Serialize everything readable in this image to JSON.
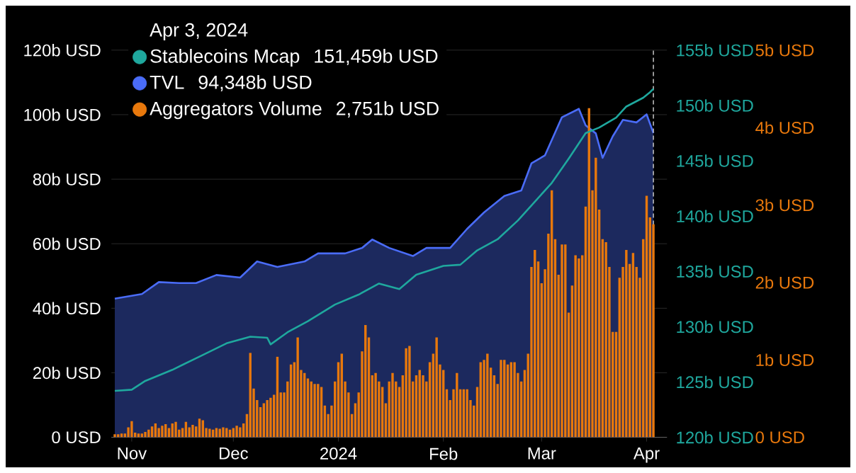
{
  "chart_data": {
    "type": "line",
    "x": [
      "2023-10-27",
      "2023-10-28",
      "2023-10-29",
      "2023-10-30",
      "2023-10-31",
      "2023-11-01",
      "2023-11-02",
      "2023-11-03",
      "2023-11-04",
      "2023-11-05",
      "2023-11-06",
      "2023-11-07",
      "2023-11-08",
      "2023-11-09",
      "2023-11-10",
      "2023-11-11",
      "2023-11-12",
      "2023-11-13",
      "2023-11-14",
      "2023-11-15",
      "2023-11-16",
      "2023-11-17",
      "2023-11-18",
      "2023-11-19",
      "2023-11-20",
      "2023-11-21",
      "2023-11-22",
      "2023-11-23",
      "2023-11-24",
      "2023-11-25",
      "2023-11-26",
      "2023-11-27",
      "2023-11-28",
      "2023-11-29",
      "2023-11-30",
      "2023-12-01",
      "2023-12-02",
      "2023-12-03",
      "2023-12-04",
      "2023-12-05",
      "2023-12-06",
      "2023-12-07",
      "2023-12-08",
      "2023-12-09",
      "2023-12-10",
      "2023-12-11",
      "2023-12-12",
      "2023-12-13",
      "2023-12-14",
      "2023-12-15",
      "2023-12-16",
      "2023-12-17",
      "2023-12-18",
      "2023-12-19",
      "2023-12-20",
      "2023-12-21",
      "2023-12-22",
      "2023-12-23",
      "2023-12-24",
      "2023-12-25",
      "2023-12-26",
      "2023-12-27",
      "2023-12-28",
      "2023-12-29",
      "2023-12-30",
      "2023-12-31",
      "2024-01-01",
      "2024-01-02",
      "2024-01-03",
      "2024-01-04",
      "2024-01-05",
      "2024-01-06",
      "2024-01-07",
      "2024-01-08",
      "2024-01-09",
      "2024-01-10",
      "2024-01-11",
      "2024-01-12",
      "2024-01-13",
      "2024-01-14",
      "2024-01-15",
      "2024-01-16",
      "2024-01-17",
      "2024-01-18",
      "2024-01-19",
      "2024-01-20",
      "2024-01-21",
      "2024-01-22",
      "2024-01-23",
      "2024-01-24",
      "2024-01-25",
      "2024-01-26",
      "2024-01-27",
      "2024-01-28",
      "2024-01-29",
      "2024-01-30",
      "2024-01-31",
      "2024-02-01",
      "2024-02-02",
      "2024-02-03",
      "2024-02-04",
      "2024-02-05",
      "2024-02-06",
      "2024-02-07",
      "2024-02-08",
      "2024-02-09",
      "2024-02-10",
      "2024-02-11",
      "2024-02-12",
      "2024-02-13",
      "2024-02-14",
      "2024-02-15",
      "2024-02-16",
      "2024-02-17",
      "2024-02-18",
      "2024-02-19",
      "2024-02-20",
      "2024-02-21",
      "2024-02-22",
      "2024-02-23",
      "2024-02-24",
      "2024-02-25",
      "2024-02-26",
      "2024-02-27",
      "2024-02-28",
      "2024-02-29",
      "2024-03-01",
      "2024-03-02",
      "2024-03-03",
      "2024-03-04",
      "2024-03-05",
      "2024-03-06",
      "2024-03-07",
      "2024-03-08",
      "2024-03-09",
      "2024-03-10",
      "2024-03-11",
      "2024-03-12",
      "2024-03-13",
      "2024-03-14",
      "2024-03-15",
      "2024-03-16",
      "2024-03-17",
      "2024-03-18",
      "2024-03-19",
      "2024-03-20",
      "2024-03-21",
      "2024-03-22",
      "2024-03-23",
      "2024-03-24",
      "2024-03-25",
      "2024-03-26",
      "2024-03-27",
      "2024-03-28",
      "2024-03-29",
      "2024-03-30",
      "2024-03-31",
      "2024-04-01",
      "2024-04-02",
      "2024-04-03"
    ],
    "xlim": [
      "2023-10-26",
      "2024-04-07"
    ],
    "xticks": [
      {
        "value": "2023-11-01",
        "label": "Nov"
      },
      {
        "value": "2023-12-01",
        "label": "Dec"
      },
      {
        "value": "2024-01-01",
        "label": "2024"
      },
      {
        "value": "2024-02-01",
        "label": "Feb"
      },
      {
        "value": "2024-03-01",
        "label": "Mar"
      },
      {
        "value": "2024-04-01",
        "label": "Apr"
      }
    ],
    "ylim": [
      0,
      120
    ],
    "yticks": [
      {
        "value": 0,
        "label": "0 USD"
      },
      {
        "value": 20,
        "label": "20b USD"
      },
      {
        "value": 40,
        "label": "40b USD"
      },
      {
        "value": 60,
        "label": "60b USD"
      },
      {
        "value": 80,
        "label": "80b USD"
      },
      {
        "value": 100,
        "label": "100b USD"
      },
      {
        "value": 120,
        "label": "120b USD"
      }
    ],
    "y2lim": [
      120,
      155
    ],
    "y2ticks": [
      {
        "value": 120,
        "label": "120b USD"
      },
      {
        "value": 125,
        "label": "125b USD"
      },
      {
        "value": 130,
        "label": "130b USD"
      },
      {
        "value": 135,
        "label": "135b USD"
      },
      {
        "value": 140,
        "label": "140b USD"
      },
      {
        "value": 145,
        "label": "145b USD"
      },
      {
        "value": 150,
        "label": "150b USD"
      },
      {
        "value": 155,
        "label": "155b USD"
      }
    ],
    "y3lim": [
      0,
      5
    ],
    "y3ticks": [
      {
        "value": 0,
        "label": "0 USD"
      },
      {
        "value": 1,
        "label": "1b USD"
      },
      {
        "value": 2,
        "label": "2b USD"
      },
      {
        "value": 3,
        "label": "3b USD"
      },
      {
        "value": 4,
        "label": "4b USD"
      },
      {
        "value": 5,
        "label": "5b USD"
      }
    ],
    "grid": "y",
    "legend": "top left",
    "legend_title": "Apr 3, 2024",
    "annotations": [
      "151,459b USD",
      "94,348b USD",
      "2,751b USD"
    ],
    "ref_lines": [
      {
        "axis": "x",
        "value": "2024-04-03",
        "color": "#bbbbbb",
        "line_style": "dashed"
      }
    ],
    "series": [
      {
        "name": "Stablecoins Mcap",
        "axis": "y2",
        "color": "#1fa89e",
        "x": [
          "2023-10-27",
          "2023-11-01",
          "2023-11-05",
          "2023-11-13",
          "2023-11-21",
          "2023-11-29",
          "2023-12-06",
          "2023-12-11",
          "2023-12-12",
          "2023-12-17",
          "2023-12-23",
          "2023-12-31",
          "2024-01-07",
          "2024-01-13",
          "2024-01-19",
          "2024-01-24",
          "2024-02-01",
          "2024-02-06",
          "2024-02-11",
          "2024-02-17",
          "2024-02-23",
          "2024-02-28",
          "2024-03-04",
          "2024-03-09",
          "2024-03-14",
          "2024-03-18",
          "2024-03-23",
          "2024-03-26",
          "2024-03-31",
          "2024-04-02",
          "2024-04-03"
        ],
        "values": [
          124.2,
          124.3,
          125.1,
          126.1,
          127.3,
          128.5,
          129.1,
          129.0,
          128.4,
          129.5,
          130.5,
          132.0,
          132.9,
          133.9,
          133.4,
          134.7,
          135.5,
          135.6,
          136.9,
          137.9,
          139.6,
          141.3,
          143.0,
          145.2,
          147.5,
          148.0,
          148.9,
          149.9,
          150.7,
          151.2,
          151.5
        ]
      },
      {
        "name": "TVL",
        "type": "area",
        "axis": "y",
        "color": "#4a6cf7",
        "x": [
          "2023-10-27",
          "2023-11-04",
          "2023-11-09",
          "2023-11-15",
          "2023-11-20",
          "2023-11-26",
          "2023-12-03",
          "2023-12-08",
          "2023-12-14",
          "2023-12-22",
          "2023-12-26",
          "2024-01-03",
          "2024-01-08",
          "2024-01-11",
          "2024-01-16",
          "2024-01-23",
          "2024-01-27",
          "2024-02-03",
          "2024-02-08",
          "2024-02-13",
          "2024-02-19",
          "2024-02-24",
          "2024-02-27",
          "2024-03-02",
          "2024-03-07",
          "2024-03-12",
          "2024-03-14",
          "2024-03-17",
          "2024-03-19",
          "2024-03-22",
          "2024-03-25",
          "2024-03-29",
          "2024-04-01",
          "2024-04-03"
        ],
        "values": [
          43.0,
          44.4,
          48.1,
          47.8,
          47.8,
          50.3,
          49.5,
          54.5,
          52.8,
          54.5,
          57.0,
          57.0,
          58.7,
          61.3,
          58.7,
          56.2,
          58.7,
          58.7,
          64.6,
          69.7,
          74.8,
          76.5,
          84.9,
          87.4,
          99.2,
          101.8,
          96.7,
          94.2,
          86.6,
          93.3,
          98.4,
          97.6,
          100.1,
          94.3
        ]
      },
      {
        "name": "Aggregators Volume",
        "type": "bar",
        "axis": "y3",
        "color": "#e8780c",
        "values": [
          0.04,
          0.04,
          0.05,
          0.05,
          0.13,
          0.21,
          0.06,
          0.05,
          0.05,
          0.07,
          0.1,
          0.14,
          0.18,
          0.12,
          0.15,
          0.17,
          0.12,
          0.18,
          0.2,
          0.1,
          0.12,
          0.2,
          0.13,
          0.16,
          0.14,
          0.24,
          0.22,
          0.12,
          0.11,
          0.1,
          0.12,
          0.11,
          0.13,
          0.12,
          0.1,
          0.12,
          0.15,
          0.13,
          0.18,
          0.3,
          1.09,
          0.63,
          0.48,
          0.39,
          0.44,
          0.48,
          0.51,
          0.55,
          1.04,
          0.58,
          0.58,
          0.72,
          0.94,
          0.97,
          1.29,
          0.87,
          0.83,
          0.76,
          0.72,
          0.69,
          0.69,
          0.65,
          0.41,
          0.3,
          0.41,
          0.72,
          0.97,
          1.08,
          0.72,
          0.58,
          0.3,
          0.44,
          0.58,
          1.11,
          1.45,
          1.29,
          0.8,
          0.83,
          0.72,
          0.65,
          0.44,
          0.72,
          0.83,
          0.72,
          0.65,
          0.8,
          1.15,
          1.18,
          0.72,
          0.8,
          0.87,
          0.8,
          0.72,
          0.97,
          1.08,
          1.29,
          0.94,
          0.87,
          0.62,
          0.48,
          0.62,
          0.83,
          0.62,
          0.62,
          0.62,
          0.48,
          0.41,
          0.65,
          0.97,
          1.0,
          1.08,
          0.9,
          0.8,
          0.69,
          1.0,
          1.0,
          0.94,
          0.97,
          0.97,
          0.83,
          0.72,
          0.87,
          1.08,
          2.2,
          2.42,
          2.27,
          1.99,
          2.17,
          2.63,
          3.19,
          2.56,
          2.1,
          2.49,
          2.49,
          1.61,
          1.96,
          2.35,
          2.31,
          2.35,
          2.98,
          4.25,
          3.19,
          3.61,
          2.94,
          2.56,
          2.52,
          2.2,
          1.36,
          1.36,
          2.06,
          2.2,
          2.42,
          2.24,
          2.38,
          2.2,
          2.06,
          2.56,
          3.12,
          2.84,
          2.75
        ]
      }
    ]
  }
}
